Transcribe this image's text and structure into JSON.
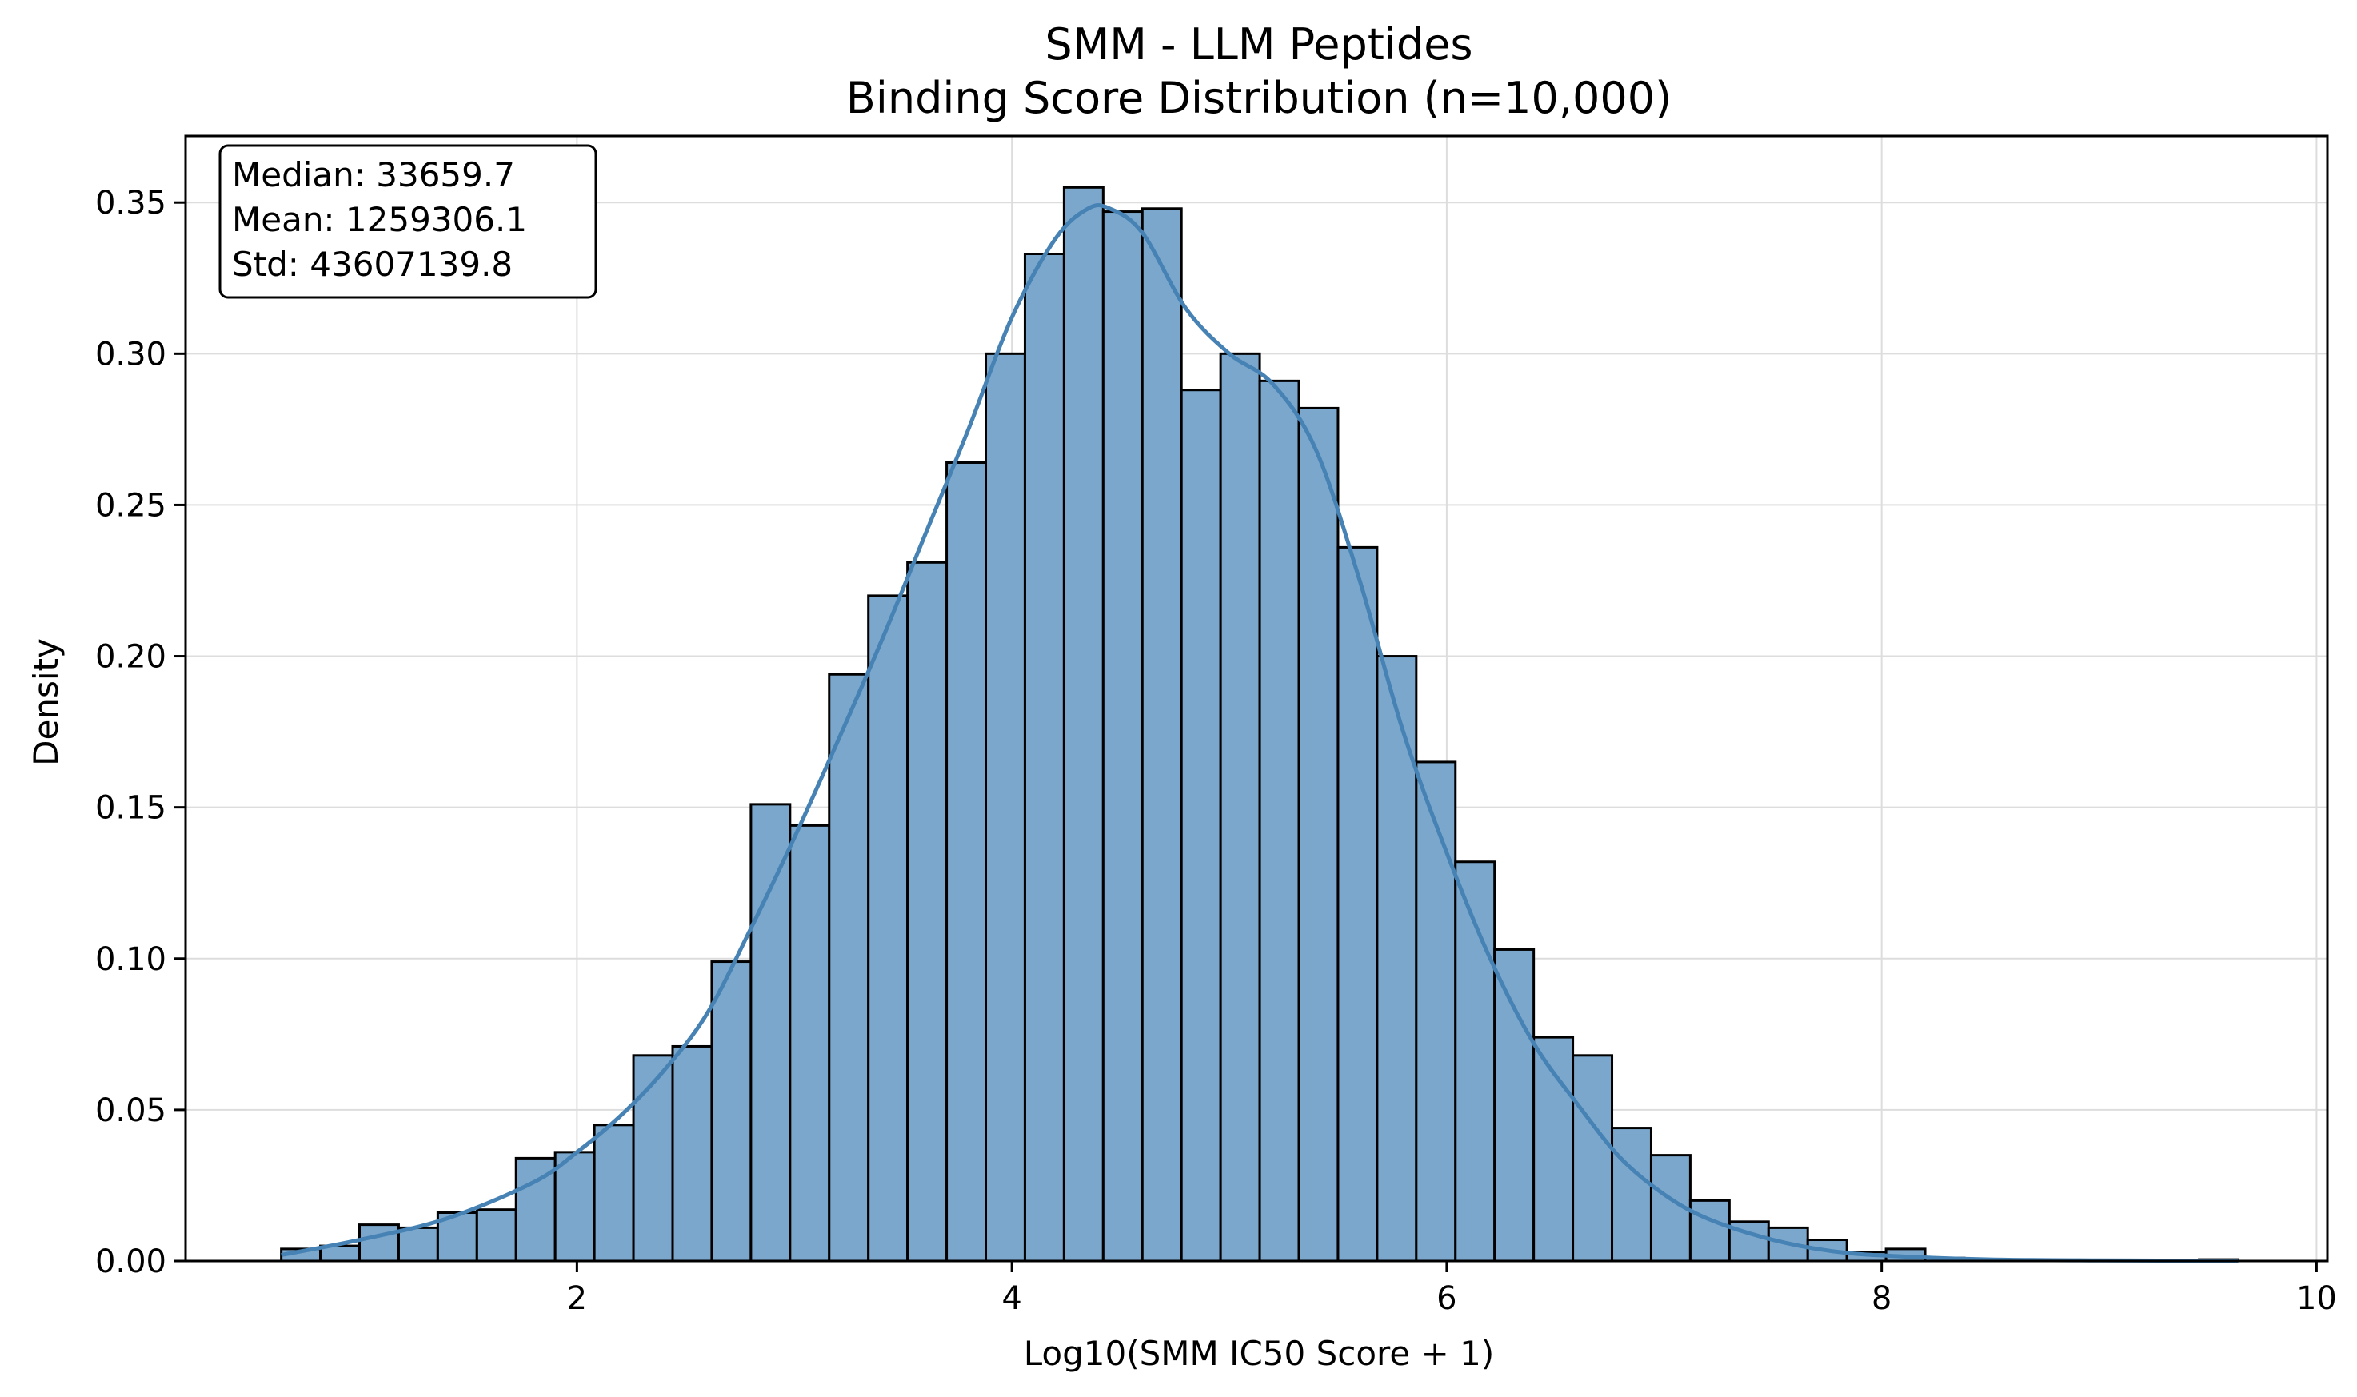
{
  "chart_data": {
    "type": "bar",
    "title": "SMM - LLM Peptides",
    "subtitle": "Binding Score Distribution (n=10,000)",
    "xlabel": "Log10(SMM IC50 Score + 1)",
    "ylabel": "Density",
    "xlim": [
      0.2,
      10.05
    ],
    "ylim": [
      0.0,
      0.372
    ],
    "x_ticks": [
      2,
      4,
      6,
      8,
      10
    ],
    "y_ticks": [
      0.0,
      0.05,
      0.1,
      0.15,
      0.2,
      0.25,
      0.3,
      0.35
    ],
    "x_tick_labels": [
      "2",
      "4",
      "6",
      "8",
      "10"
    ],
    "y_tick_labels": [
      "0.00",
      "0.05",
      "0.10",
      "0.15",
      "0.20",
      "0.25",
      "0.30",
      "0.35"
    ],
    "grid": true,
    "bin_edges": [
      0.64,
      0.82,
      1.0,
      1.18,
      1.36,
      1.54,
      1.72,
      1.9,
      2.08,
      2.26,
      2.44,
      2.62,
      2.8,
      2.98,
      3.16,
      3.34,
      3.52,
      3.7,
      3.88,
      4.06,
      4.24,
      4.42,
      4.6,
      4.78,
      4.96,
      5.14,
      5.32,
      5.5,
      5.68,
      5.86,
      6.04,
      6.22,
      6.4,
      6.58,
      6.76,
      6.94,
      7.12,
      7.3,
      7.48,
      7.66,
      7.84,
      8.02,
      8.2,
      8.38,
      8.56,
      8.74,
      8.92,
      9.1,
      9.28,
      9.46,
      9.64
    ],
    "values": [
      0.004,
      0.005,
      0.012,
      0.011,
      0.016,
      0.017,
      0.034,
      0.036,
      0.045,
      0.068,
      0.071,
      0.099,
      0.151,
      0.144,
      0.194,
      0.22,
      0.231,
      0.264,
      0.3,
      0.333,
      0.355,
      0.347,
      0.348,
      0.288,
      0.3,
      0.291,
      0.282,
      0.236,
      0.2,
      0.165,
      0.132,
      0.103,
      0.074,
      0.068,
      0.044,
      0.035,
      0.02,
      0.013,
      0.011,
      0.007,
      0.003,
      0.004,
      0.001,
      0.0005,
      0.0003,
      0.0002,
      0.0001,
      0.0001,
      0.0001,
      0.0005
    ],
    "kde": {
      "x": [
        0.64,
        1.0,
        1.4,
        1.8,
        2.0,
        2.2,
        2.4,
        2.6,
        2.8,
        3.0,
        3.2,
        3.4,
        3.6,
        3.8,
        4.0,
        4.2,
        4.35,
        4.45,
        4.6,
        4.8,
        5.0,
        5.2,
        5.4,
        5.6,
        5.8,
        6.0,
        6.2,
        6.4,
        6.6,
        6.8,
        7.0,
        7.2,
        7.5,
        7.8,
        8.1,
        8.5,
        9.0,
        9.64
      ],
      "y": [
        0.002,
        0.007,
        0.014,
        0.026,
        0.036,
        0.048,
        0.063,
        0.082,
        0.11,
        0.14,
        0.172,
        0.205,
        0.24,
        0.275,
        0.312,
        0.338,
        0.348,
        0.348,
        0.34,
        0.315,
        0.3,
        0.29,
        0.268,
        0.225,
        0.175,
        0.135,
        0.1,
        0.072,
        0.052,
        0.034,
        0.022,
        0.014,
        0.007,
        0.003,
        0.0015,
        0.0005,
        0.0002,
        0.0001
      ]
    },
    "stats": [
      "Median: 33659.7",
      "Mean: 1259306.1",
      "Std: 43607139.8"
    ],
    "colors": {
      "bar_fill": "#7BA7CC",
      "bar_edge": "#000000",
      "kde_line": "#4682B4",
      "grid": "#DDDDDD"
    }
  }
}
